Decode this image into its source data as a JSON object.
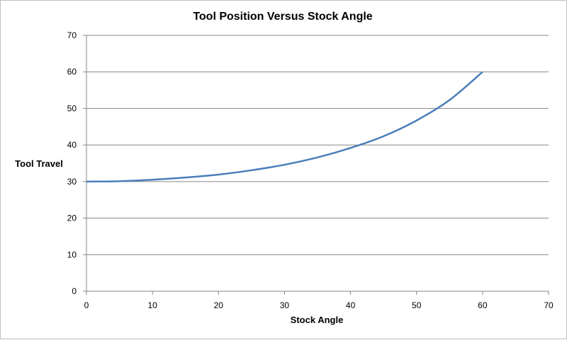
{
  "chart_data": {
    "type": "line",
    "title": "Tool Position Versus Stock Angle",
    "xlabel": "Stock Angle",
    "ylabel": "Tool Travel",
    "xlim": [
      0,
      70
    ],
    "ylim": [
      0,
      70
    ],
    "xticks": [
      0,
      10,
      20,
      30,
      40,
      50,
      60,
      70
    ],
    "yticks": [
      0,
      10,
      20,
      30,
      40,
      50,
      60,
      70
    ],
    "grid": "horizontal",
    "legend": "none",
    "series": [
      {
        "color": "#4a7ebb",
        "x": [
          0,
          5,
          10,
          15,
          20,
          25,
          30,
          35,
          40,
          45,
          50,
          55,
          60
        ],
        "y": [
          30.0,
          30.1,
          30.5,
          31.1,
          31.9,
          33.1,
          34.6,
          36.6,
          39.2,
          42.4,
          46.7,
          52.3,
          60.0
        ]
      }
    ]
  }
}
